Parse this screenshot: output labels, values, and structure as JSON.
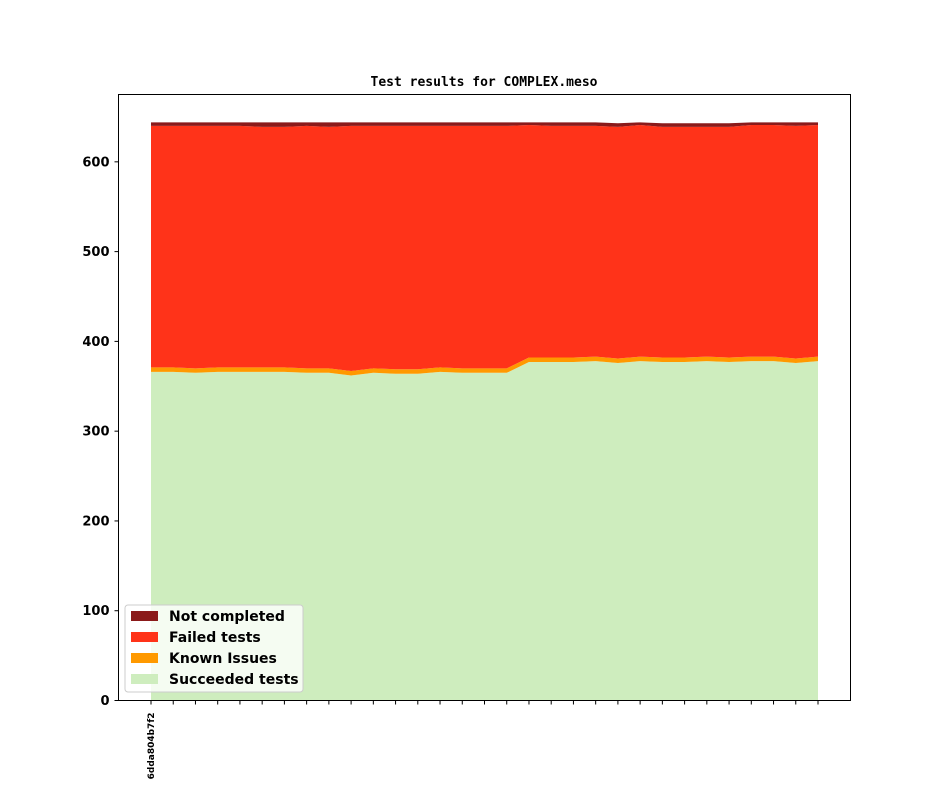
{
  "chart_data": {
    "type": "area",
    "title": "Test results for COMPLEX.meso",
    "xlabel": "",
    "ylabel": "",
    "ylim": [
      0,
      675
    ],
    "yticks": [
      0,
      100,
      200,
      300,
      400,
      500,
      600
    ],
    "x_tick_labels": [
      "6dda804b7f2"
    ],
    "legend_position": "lower-left",
    "grid": false,
    "colors": {
      "not_completed": "#8b1a1a",
      "failed": "#ff3319",
      "known_issues": "#ff9900",
      "succeeded": "#ceedbe"
    },
    "legend": [
      "Not completed",
      "Failed tests",
      "Known Issues",
      "Succeeded tests"
    ],
    "series": [
      {
        "name": "Succeeded tests",
        "values": [
          366,
          366,
          365,
          366,
          366,
          366,
          366,
          365,
          365,
          362,
          365,
          364,
          364,
          366,
          365,
          365,
          365,
          377,
          377,
          377,
          378,
          376,
          378,
          377,
          377,
          378,
          377,
          378,
          378,
          376,
          378
        ]
      },
      {
        "name": "Known Issues",
        "values": [
          5,
          5,
          5,
          5,
          5,
          5,
          5,
          5,
          5,
          5,
          5,
          5,
          5,
          5,
          5,
          5,
          5,
          5,
          5,
          5,
          5,
          5,
          5,
          5,
          5,
          5,
          5,
          5,
          5,
          5,
          5
        ]
      },
      {
        "name": "Failed tests",
        "values": [
          269,
          269,
          270,
          269,
          269,
          268,
          268,
          270,
          269,
          273,
          270,
          271,
          271,
          269,
          270,
          270,
          270,
          259,
          258,
          258,
          257,
          258,
          258,
          257,
          257,
          256,
          257,
          258,
          258,
          259,
          258
        ]
      },
      {
        "name": "Not completed",
        "values": [
          4,
          4,
          4,
          4,
          4,
          5,
          5,
          4,
          5,
          4,
          4,
          4,
          4,
          4,
          4,
          4,
          4,
          3,
          4,
          4,
          4,
          4,
          3,
          4,
          4,
          4,
          4,
          3,
          3,
          4,
          3
        ]
      }
    ]
  }
}
